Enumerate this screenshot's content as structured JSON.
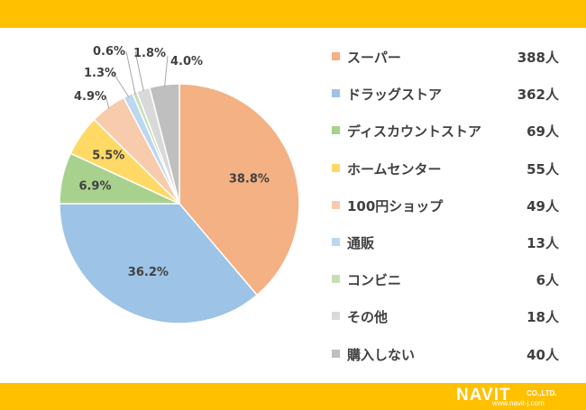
{
  "chart_data": {
    "type": "pie",
    "slices": [
      {
        "label": "スーパー",
        "count": "388人",
        "value": 388,
        "percent": "38.8%",
        "color": "#F4B183"
      },
      {
        "label": "ドラッグストア",
        "count": "362人",
        "value": 362,
        "percent": "36.2%",
        "color": "#9DC3E6"
      },
      {
        "label": "ディスカウントストア",
        "count": "69人",
        "value": 69,
        "percent": "6.9%",
        "color": "#A9D18E"
      },
      {
        "label": "ホームセンター",
        "count": "55人",
        "value": 55,
        "percent": "5.5%",
        "color": "#FFD966"
      },
      {
        "label": "100円ショップ",
        "count": "49人",
        "value": 49,
        "percent": "4.9%",
        "color": "#F8CBAD"
      },
      {
        "label": "通販",
        "count": "13人",
        "value": 13,
        "percent": "1.3%",
        "color": "#BDD7EE"
      },
      {
        "label": "コンビニ",
        "count": "6人",
        "value": 6,
        "percent": "0.6%",
        "color": "#C5E0B4"
      },
      {
        "label": "その他",
        "count": "18人",
        "value": 18,
        "percent": "1.8%",
        "color": "#D9D9D9"
      },
      {
        "label": "購入しない",
        "count": "40人",
        "value": 40,
        "percent": "4.0%",
        "color": "#BFBFBF"
      }
    ],
    "legend_position": "right"
  },
  "logo": {
    "name": "NAVIT",
    "company_suffix": "CO.,LTD.",
    "url": "www.navit-j.com"
  }
}
